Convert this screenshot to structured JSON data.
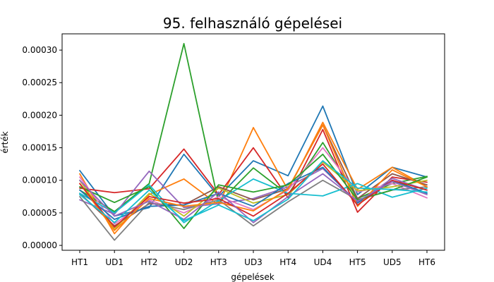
{
  "chart_data": {
    "type": "line",
    "title": "95. felhasználó gépelései",
    "xlabel": "gépelések",
    "ylabel": "érték",
    "categories": [
      "HT1",
      "UD1",
      "HT2",
      "UD2",
      "HT3",
      "UD3",
      "HT4",
      "UD4",
      "HT5",
      "UD5",
      "HT6"
    ],
    "ylim": [
      -7.5e-06,
      0.000325
    ],
    "yticks": [
      0.0,
      5e-05,
      0.0001,
      0.00015,
      0.0002,
      0.00025,
      0.0003
    ],
    "ytick_labels": [
      "0.00000",
      "0.00005",
      "0.00010",
      "0.00015",
      "0.00020",
      "0.00025",
      "0.00030"
    ],
    "grid": false,
    "legend": "none",
    "series": [
      {
        "color": "#1f77b4",
        "values": [
          0.000115,
          4.5e-05,
          5.8e-05,
          0.00014,
          7.5e-05,
          0.00013,
          0.000107,
          0.000214,
          7.8e-05,
          0.00012,
          0.000105
        ]
      },
      {
        "color": "#ff7f0e",
        "values": [
          0.00011,
          1.8e-05,
          7.8e-05,
          0.000102,
          6.2e-05,
          0.000181,
          8.5e-05,
          0.000189,
          8.6e-05,
          0.00012,
          9e-05
        ]
      },
      {
        "color": "#2ca02c",
        "values": [
          8.5e-05,
          5.2e-05,
          9.5e-05,
          0.00031,
          6.5e-05,
          0.000119,
          7.8e-05,
          0.000158,
          7.2e-05,
          9.5e-05,
          0.000106
        ]
      },
      {
        "color": "#d62728",
        "values": [
          8.8e-05,
          8.1e-05,
          8.7e-05,
          0.000148,
          7.8e-05,
          0.00015,
          7.3e-05,
          0.000178,
          5.1e-05,
          0.000105,
          9.7e-05
        ]
      },
      {
        "color": "#9467bd",
        "values": [
          7e-05,
          4.8e-05,
          0.000114,
          5.8e-05,
          6.4e-05,
          7.2e-05,
          9e-05,
          0.000118,
          6.6e-05,
          0.000103,
          8.5e-05
        ]
      },
      {
        "color": "#8c564b",
        "values": [
          8e-05,
          3e-05,
          6.4e-05,
          6.2e-05,
          9e-05,
          7e-05,
          8.7e-05,
          0.000185,
          7.2e-05,
          0.00011,
          9.3e-05
        ]
      },
      {
        "color": "#e377c2",
        "values": [
          0.000105,
          3.3e-05,
          7e-05,
          5e-05,
          7.5e-05,
          5.5e-05,
          8.5e-05,
          0.00015,
          8.2e-05,
          9.5e-05,
          7.3e-05
        ]
      },
      {
        "color": "#7f7f7f",
        "values": [
          7.5e-05,
          8e-06,
          6.6e-05,
          5.5e-05,
          7e-05,
          3e-05,
          6.7e-05,
          0.0001,
          7e-05,
          8.5e-05,
          9e-05
        ]
      },
      {
        "color": "#bcbd22",
        "values": [
          0.0001,
          2.5e-05,
          8e-05,
          4.5e-05,
          8.8e-05,
          6.5e-05,
          7.8e-05,
          0.000128,
          8.4e-05,
          9e-05,
          0.0001
        ]
      },
      {
        "color": "#17becf",
        "values": [
          8e-05,
          5e-05,
          9.3e-05,
          3.5e-05,
          6.9e-05,
          0.000102,
          8e-05,
          7.6e-05,
          9.5e-05,
          7.4e-05,
          8.8e-05
        ]
      },
      {
        "color": "#1f77b4",
        "values": [
          8.5e-05,
          4e-05,
          6e-05,
          6.2e-05,
          8e-05,
          6e-05,
          9.5e-05,
          0.00012,
          6.5e-05,
          0.0001,
          8e-05
        ]
      },
      {
        "color": "#ff7f0e",
        "values": [
          9.5e-05,
          2.3e-05,
          7.2e-05,
          6e-05,
          6.6e-05,
          5.3e-05,
          8.7e-05,
          0.000185,
          6e-05,
          0.000116,
          9e-05
        ]
      },
      {
        "color": "#2ca02c",
        "values": [
          9e-05,
          6.6e-05,
          9e-05,
          2.6e-05,
          9.3e-05,
          8.2e-05,
          9.3e-05,
          0.00014,
          7e-05,
          8.5e-05,
          0.000105
        ]
      },
      {
        "color": "#d62728",
        "values": [
          9.5e-05,
          2.8e-05,
          7.5e-05,
          6.5e-05,
          7.2e-05,
          4.5e-05,
          8e-05,
          0.000125,
          6.2e-05,
          0.0001,
          8.5e-05
        ]
      },
      {
        "color": "#9467bd",
        "values": [
          0.0001,
          4.5e-05,
          6.8e-05,
          4e-05,
          8.2e-05,
          3.5e-05,
          7.5e-05,
          0.00011,
          6.8e-05,
          9.8e-05,
          7.8e-05
        ]
      },
      {
        "color": "#17becf",
        "values": [
          7.8e-05,
          3.5e-05,
          8.5e-05,
          3.8e-05,
          6.2e-05,
          3.8e-05,
          7.1e-05,
          0.00013,
          8.8e-05,
          8.6e-05,
          8.2e-05
        ]
      }
    ]
  }
}
